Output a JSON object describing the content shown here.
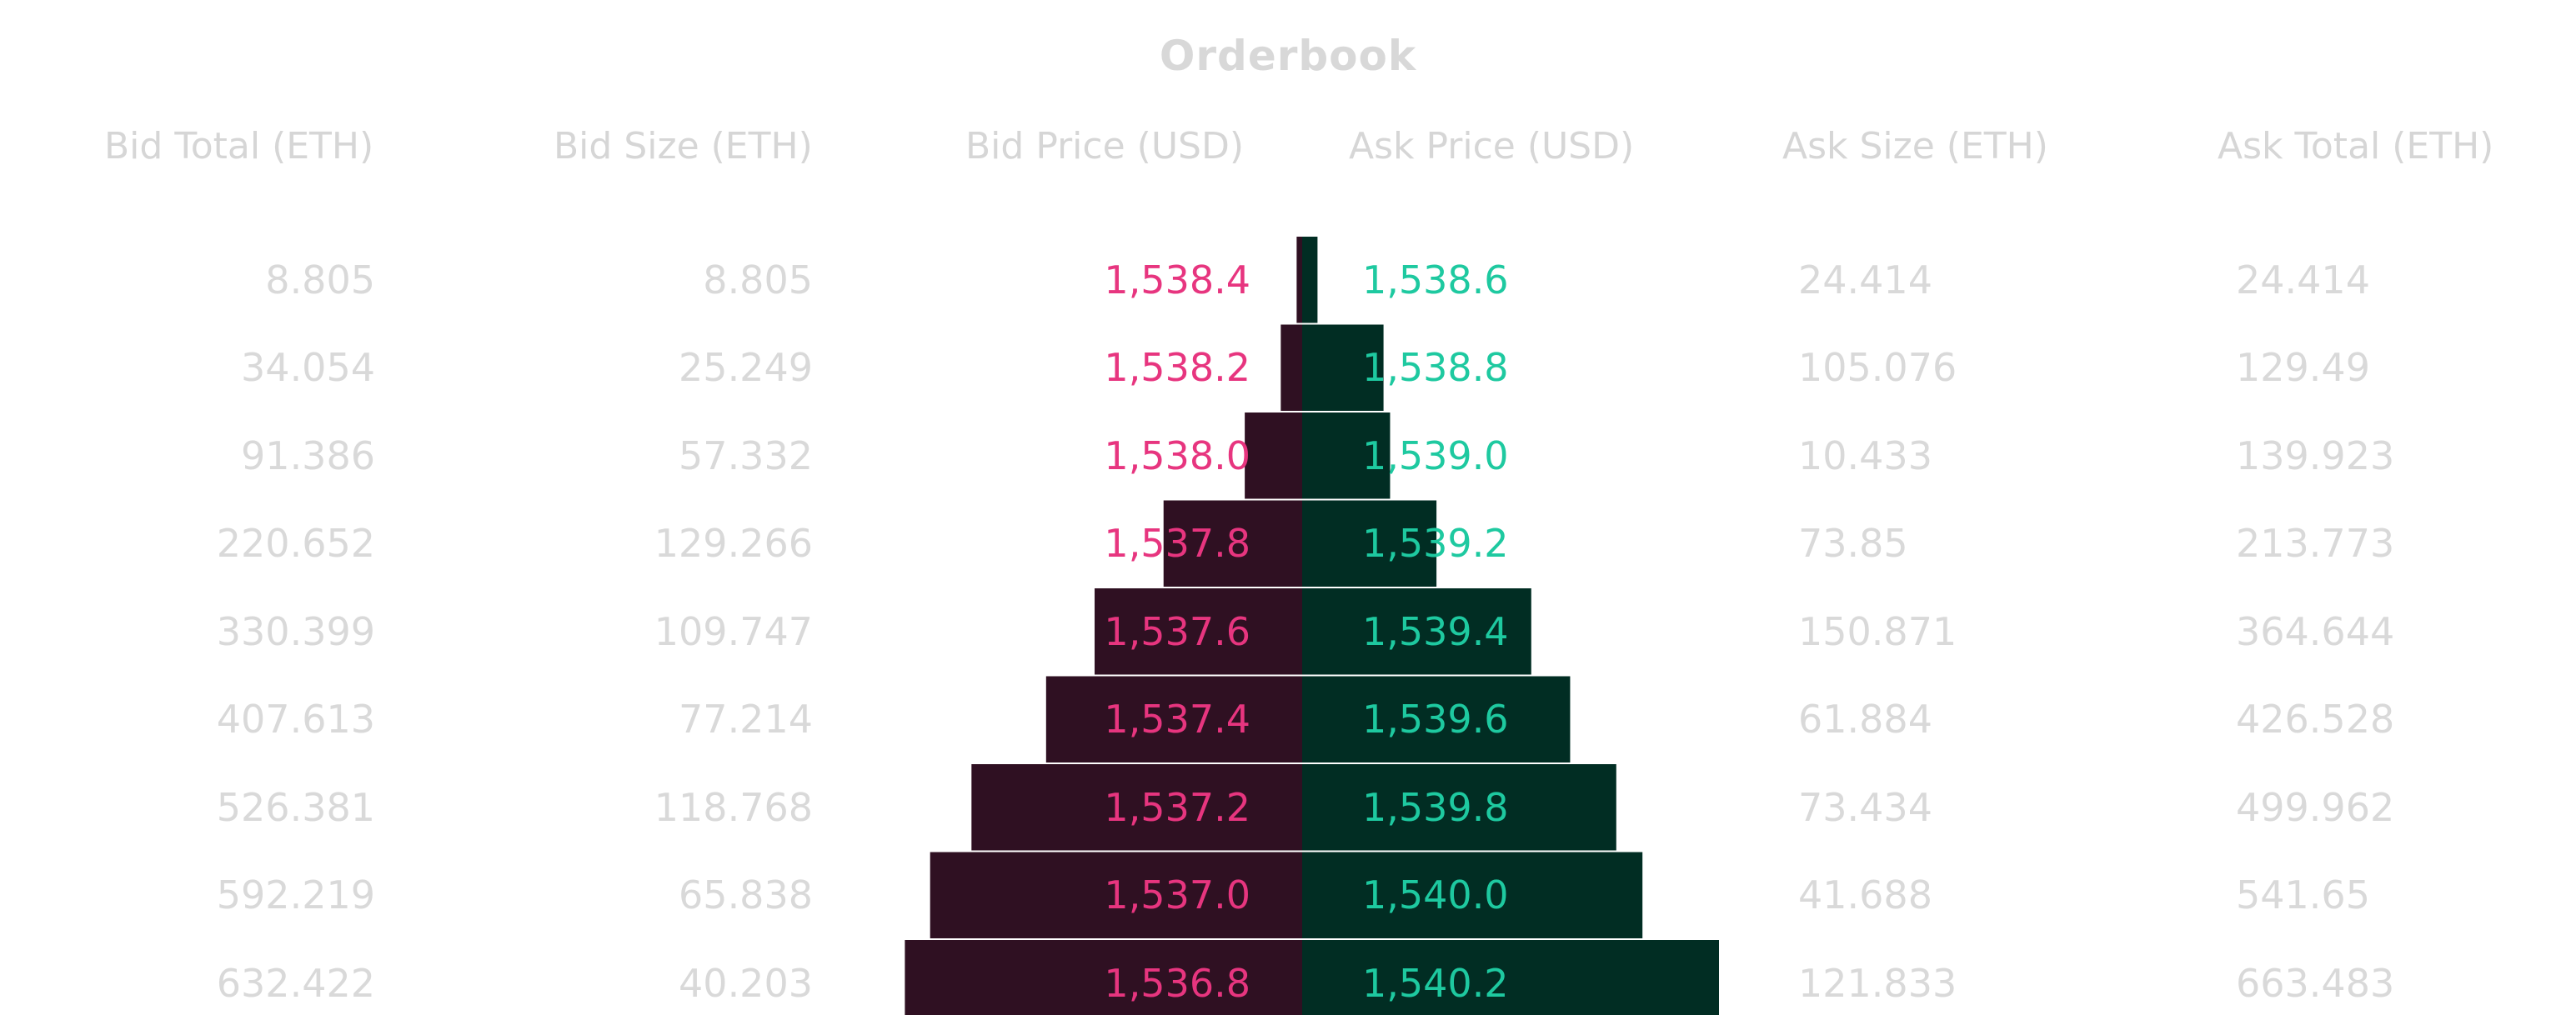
{
  "chart_data": {
    "type": "bar",
    "title": "Orderbook",
    "headers": {
      "bid_total": "Bid Total (ETH)",
      "bid_size": "Bid Size (ETH)",
      "bid_price": "Bid Price (USD)",
      "ask_price": "Ask Price (USD)",
      "ask_size": "Ask Size (ETH)",
      "ask_total": "Ask Total (ETH)"
    },
    "rows": [
      {
        "bid_total": "8.805",
        "bid_size": "8.805",
        "bid_price": "1,538.4",
        "ask_price": "1,538.6",
        "ask_size": "24.414",
        "ask_total": "24.414",
        "bid_depth": 8.805,
        "ask_depth": 24.414
      },
      {
        "bid_total": "34.054",
        "bid_size": "25.249",
        "bid_price": "1,538.2",
        "ask_price": "1,538.8",
        "ask_size": "105.076",
        "ask_total": "129.49",
        "bid_depth": 34.054,
        "ask_depth": 129.49
      },
      {
        "bid_total": "91.386",
        "bid_size": "57.332",
        "bid_price": "1,538.0",
        "ask_price": "1,539.0",
        "ask_size": "10.433",
        "ask_total": "139.923",
        "bid_depth": 91.386,
        "ask_depth": 139.923
      },
      {
        "bid_total": "220.652",
        "bid_size": "129.266",
        "bid_price": "1,537.8",
        "ask_price": "1,539.2",
        "ask_size": "73.85",
        "ask_total": "213.773",
        "bid_depth": 220.652,
        "ask_depth": 213.773
      },
      {
        "bid_total": "330.399",
        "bid_size": "109.747",
        "bid_price": "1,537.6",
        "ask_price": "1,539.4",
        "ask_size": "150.871",
        "ask_total": "364.644",
        "bid_depth": 330.399,
        "ask_depth": 364.644
      },
      {
        "bid_total": "407.613",
        "bid_size": "77.214",
        "bid_price": "1,537.4",
        "ask_price": "1,539.6",
        "ask_size": "61.884",
        "ask_total": "426.528",
        "bid_depth": 407.613,
        "ask_depth": 426.528
      },
      {
        "bid_total": "526.381",
        "bid_size": "118.768",
        "bid_price": "1,537.2",
        "ask_price": "1,539.8",
        "ask_size": "73.434",
        "ask_total": "499.962",
        "bid_depth": 526.381,
        "ask_depth": 499.962
      },
      {
        "bid_total": "592.219",
        "bid_size": "65.838",
        "bid_price": "1,537.0",
        "ask_price": "1,540.0",
        "ask_size": "41.688",
        "ask_total": "541.65",
        "bid_depth": 592.219,
        "ask_depth": 541.65
      },
      {
        "bid_total": "632.422",
        "bid_size": "40.203",
        "bid_price": "1,536.8",
        "ask_price": "1,540.2",
        "ask_size": "121.833",
        "ask_total": "663.483",
        "bid_depth": 632.422,
        "ask_depth": 663.483
      }
    ],
    "colors": {
      "bid_bar": "#2f1022",
      "ask_bar": "#012d23",
      "bid_price": "#e7357f",
      "ask_price": "#1ec9a0",
      "volume_text": "#d9d9d9",
      "header_text": "#d6d6d6"
    },
    "depth_max": 663.483
  }
}
